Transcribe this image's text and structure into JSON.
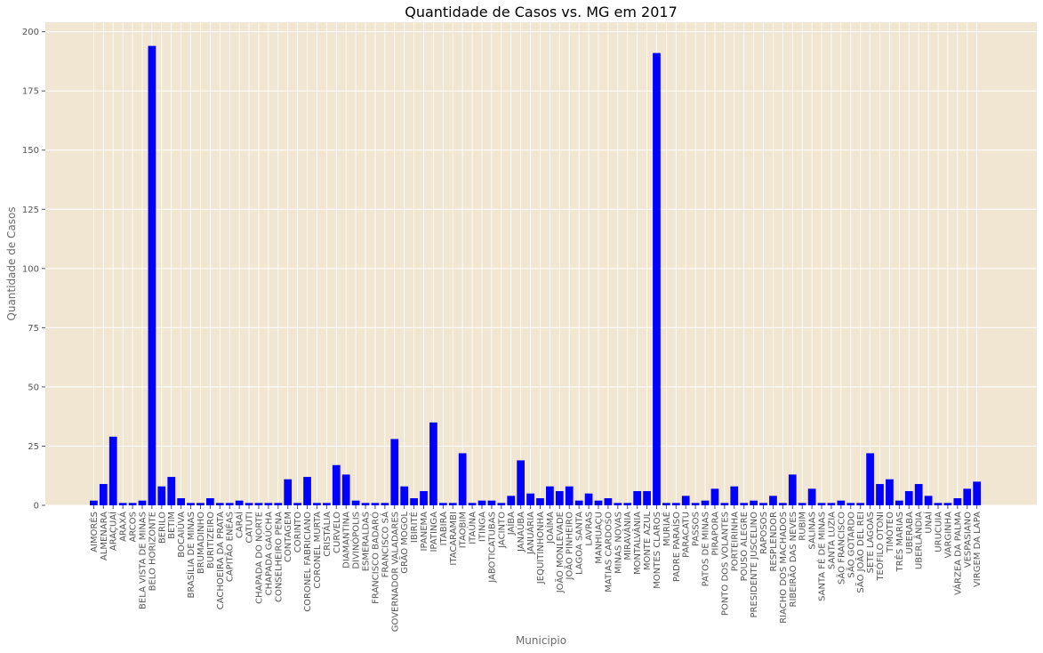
{
  "chart_data": {
    "type": "bar",
    "title": "Quantidade de Casos vs. MG em 2017",
    "xlabel": "Municipio",
    "ylabel": "Quantidade de Casos",
    "ylim": [
      0,
      204
    ],
    "yticks": [
      0,
      25,
      50,
      75,
      100,
      125,
      150,
      175,
      200
    ],
    "grid": true,
    "colors": {
      "bar": "#0000ff",
      "plot_bg": "#f0e6d2",
      "grid": "#ffffff"
    },
    "categories": [
      "AIMORÉS",
      "ALMENARA",
      "ARAÇUAÍ",
      "ARAXÁ",
      "ARCOS",
      "BELA VISTA DE MINAS",
      "BELO HORIZONTE",
      "BERILO",
      "BETIM",
      "BOCAIÚVA",
      "BRASÍLIA DE MINAS",
      "BRUMADINHO",
      "BURITIZEIRO",
      "CACHOEIRA DA PRATA",
      "CAPITÃO ENÉAS",
      "CARAÍ",
      "CATUTI",
      "CHAPADA DO NORTE",
      "CHAPADA GAÚCHA",
      "CONSELHEIRO PENA",
      "CONTAGEM",
      "CORINTO",
      "CORONEL FABRICIANO",
      "CORONEL MURTA",
      "CRISTÁLIA",
      "CURVELO",
      "DIAMANTINA",
      "DIVINÓPOLIS",
      "ESMERALDAS",
      "FRANCISCO BADARÓ",
      "FRANCISCO SÁ",
      "GOVERNADOR VALADARES",
      "GRÃO MOGOL",
      "IBIRITÉ",
      "IPANEMA",
      "IPATINGA",
      "ITABIRA",
      "ITACARAMBI",
      "ITAOBIM",
      "ITAÚNA",
      "ITINGA",
      "JABOTICATUBAS",
      "JACINTO",
      "JAÍBA",
      "JANAÚBA",
      "JANUÁRIA",
      "JEQUITINHONHA",
      "JOAÍMA",
      "JOÃO MONLEVADE",
      "JOÃO PINHEIRO",
      "LAGOA SANTA",
      "LAVRAS",
      "MANHUAÇU",
      "MATIAS CARDOSO",
      "MINAS NOVAS",
      "MIRAVÂNIA",
      "MONTALVÂNIA",
      "MONTE AZUL",
      "MONTES CLAROS",
      "MURIAÉ",
      "PADRE PARAÍSO",
      "PARACATU",
      "PASSOS",
      "PATOS DE MINAS",
      "PIRAPORA",
      "PONTO DOS VOLANTES",
      "PORTEIRINHA",
      "POUSO ALEGRE",
      "PRESIDENTE JUSCELINO",
      "RAPOSOS",
      "RESPLENDOR",
      "RIACHO DOS MACHADOS",
      "RIBEIRÃO DAS NEVES",
      "RUBIM",
      "SALINAS",
      "SANTA FÉ DE MINAS",
      "SANTA LUZIA",
      "SÃO FRANCISCO",
      "SÃO GOTARDO",
      "SÃO JOÃO DEL REI",
      "SETE LAGOAS",
      "TEÓFILO OTONI",
      "TIMÓTEO",
      "TRÊS MARIAS",
      "UBERABA",
      "UBERLÂNDIA",
      "UNAÍ",
      "URUCUIA",
      "VARGINHA",
      "VÁRZEA DA PALMA",
      "VESPASIANO",
      "VIRGEM DA LAPA"
    ],
    "values": [
      2,
      9,
      29,
      1,
      1,
      2,
      194,
      8,
      12,
      3,
      1,
      1,
      3,
      1,
      1,
      2,
      1,
      1,
      1,
      1,
      11,
      1,
      12,
      1,
      1,
      17,
      13,
      2,
      1,
      1,
      1,
      28,
      8,
      3,
      6,
      35,
      1,
      1,
      22,
      1,
      2,
      2,
      1,
      4,
      19,
      5,
      3,
      8,
      6,
      8,
      2,
      5,
      2,
      3,
      1,
      1,
      6,
      6,
      191,
      1,
      1,
      4,
      1,
      2,
      7,
      1,
      8,
      1,
      2,
      1,
      4,
      1,
      13,
      1,
      7,
      1,
      1,
      2,
      1,
      1,
      22,
      9,
      11,
      2,
      6,
      9,
      4,
      1,
      1,
      3,
      7,
      10
    ]
  }
}
